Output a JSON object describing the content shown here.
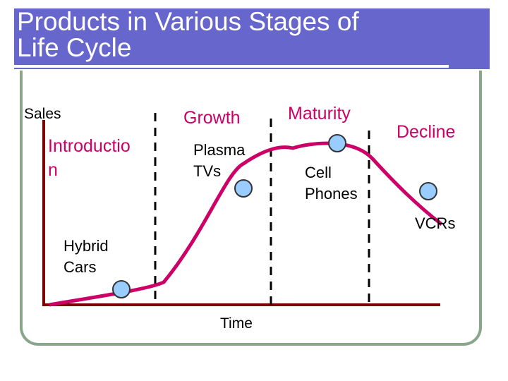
{
  "title": "Products in Various Stages of\nLife Cycle",
  "axes": {
    "y_label": "Sales",
    "x_label": "Time"
  },
  "stages": {
    "introduction": "Introductio\nn",
    "growth": "Growth",
    "maturity": "Maturity",
    "decline": "Decline"
  },
  "products": {
    "hybrid_cars": "Hybrid\nCars",
    "plasma_tvs": "Plasma\nTVs",
    "cell_phones": "Cell\nPhones",
    "vcrs": "VCRs"
  },
  "colors": {
    "title_band": "#6666cc",
    "curve": "#cc0066",
    "axis": "#800000",
    "marker_fill": "#99ccff",
    "frame": "#8aa68a",
    "stage_text": "#cc0066"
  }
}
